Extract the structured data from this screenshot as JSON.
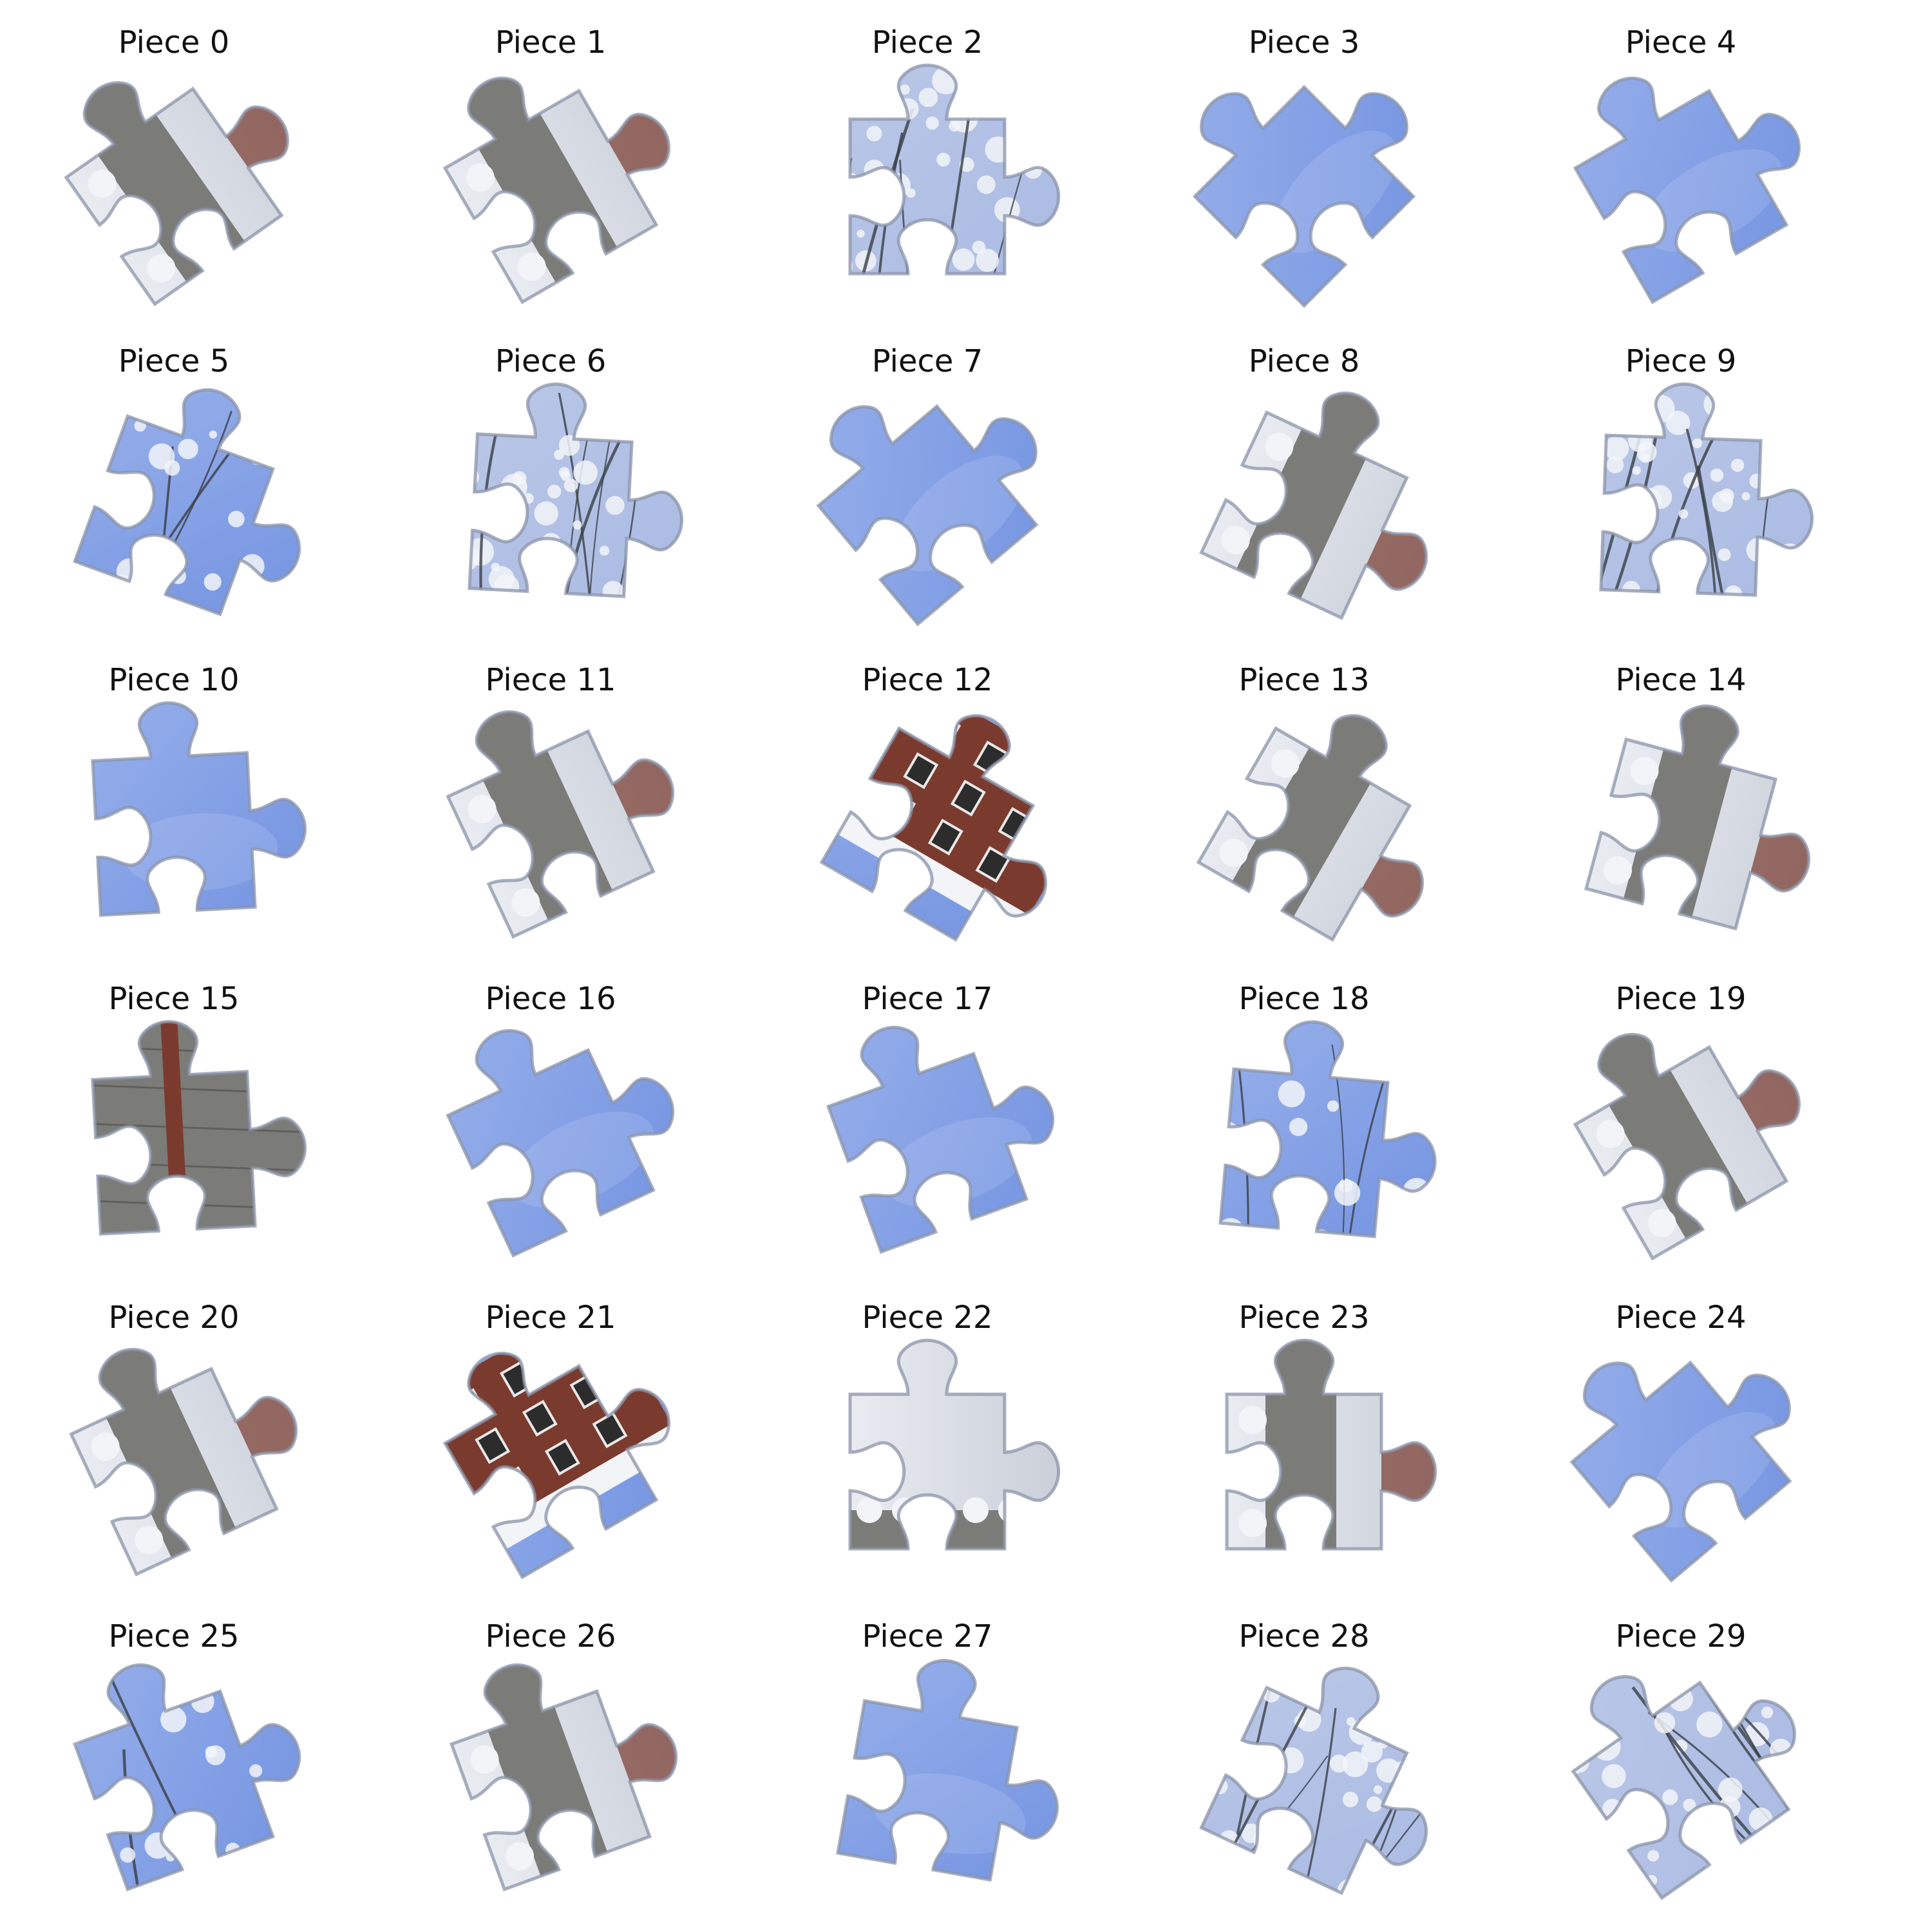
{
  "puzzle": {
    "pieces": [
      {
        "label": "Piece 0",
        "fill": "snow-street",
        "rotation": -35
      },
      {
        "label": "Piece 1",
        "fill": "snow-street",
        "rotation": -30
      },
      {
        "label": "Piece 2",
        "fill": "snow-tree",
        "rotation": 0
      },
      {
        "label": "Piece 3",
        "fill": "sky",
        "rotation": -45
      },
      {
        "label": "Piece 4",
        "fill": "sky",
        "rotation": -30
      },
      {
        "label": "Piece 5",
        "fill": "sky-tree",
        "rotation": 20
      },
      {
        "label": "Piece 6",
        "fill": "snow-tree",
        "rotation": 3
      },
      {
        "label": "Piece 7",
        "fill": "sky",
        "rotation": -40
      },
      {
        "label": "Piece 8",
        "fill": "snow-street",
        "rotation": 25
      },
      {
        "label": "Piece 9",
        "fill": "snow-tree",
        "rotation": 2
      },
      {
        "label": "Piece 10",
        "fill": "sky",
        "rotation": -3
      },
      {
        "label": "Piece 11",
        "fill": "snow-street",
        "rotation": -25
      },
      {
        "label": "Piece 12",
        "fill": "brick",
        "rotation": 30
      },
      {
        "label": "Piece 13",
        "fill": "snow-street",
        "rotation": 30
      },
      {
        "label": "Piece 14",
        "fill": "snow-street",
        "rotation": 15
      },
      {
        "label": "Piece 15",
        "fill": "road",
        "rotation": -3
      },
      {
        "label": "Piece 16",
        "fill": "sky",
        "rotation": -25
      },
      {
        "label": "Piece 17",
        "fill": "sky",
        "rotation": -20
      },
      {
        "label": "Piece 18",
        "fill": "sky-tree",
        "rotation": 5
      },
      {
        "label": "Piece 19",
        "fill": "snow-street",
        "rotation": -30
      },
      {
        "label": "Piece 20",
        "fill": "snow-street",
        "rotation": -25
      },
      {
        "label": "Piece 21",
        "fill": "brick",
        "rotation": -30
      },
      {
        "label": "Piece 22",
        "fill": "snow-field",
        "rotation": 0
      },
      {
        "label": "Piece 23",
        "fill": "snow-street",
        "rotation": 0
      },
      {
        "label": "Piece 24",
        "fill": "sky",
        "rotation": -40
      },
      {
        "label": "Piece 25",
        "fill": "sky-tree",
        "rotation": -20
      },
      {
        "label": "Piece 26",
        "fill": "snow-street",
        "rotation": -20
      },
      {
        "label": "Piece 27",
        "fill": "sky",
        "rotation": 10
      },
      {
        "label": "Piece 28",
        "fill": "snow-tree",
        "rotation": 25
      },
      {
        "label": "Piece 29",
        "fill": "snow-tree",
        "rotation": -35
      }
    ],
    "colors": {
      "sky_light": "#9db4ec",
      "sky_dark": "#6e8fe0",
      "snow_light": "#f2f4f8",
      "snow_shadow": "#c9ced8",
      "road": "#7b7b78",
      "road_dark": "#5f605d",
      "brick": "#7a3b2e",
      "branch": "#3a3f46",
      "edge": "#8a93a8"
    }
  }
}
